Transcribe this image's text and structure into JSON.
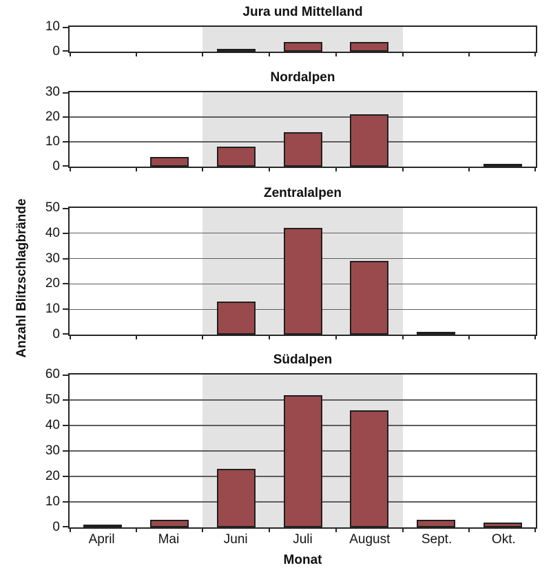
{
  "figure": {
    "ylabel": "Anzahl Blitzschlagbrände",
    "xlabel": "Monat"
  },
  "chart_data": {
    "type": "bar",
    "categories": [
      "April",
      "Mai",
      "Juni",
      "Juli",
      "August",
      "Sept.",
      "Okt."
    ],
    "xlabel": "Monat",
    "ylabel": "Anzahl Blitzschlagbrände",
    "ytick_step": 10,
    "grid": "horizontal",
    "legend": "none",
    "bar_color": "#9a4a4c",
    "bar_border_color": "#1f1f1f",
    "shaded_band": {
      "from_category": "Juni",
      "to_category": "August",
      "color": "#e3e3e4"
    },
    "panels": [
      {
        "title": "Jura und Mittelland",
        "values": [
          0,
          0,
          1,
          4,
          4,
          0,
          0
        ],
        "ylim": [
          0,
          10
        ]
      },
      {
        "title": "Nordalpen",
        "values": [
          0,
          4,
          8,
          14,
          21,
          0,
          1
        ],
        "ylim": [
          0,
          30
        ]
      },
      {
        "title": "Zentralalpen",
        "values": [
          0,
          0,
          13,
          42,
          29,
          1,
          0
        ],
        "ylim": [
          0,
          50
        ]
      },
      {
        "title": "Südalpen",
        "values": [
          1,
          3,
          23,
          52,
          46,
          3,
          2
        ],
        "ylim": [
          0,
          60
        ]
      }
    ]
  }
}
